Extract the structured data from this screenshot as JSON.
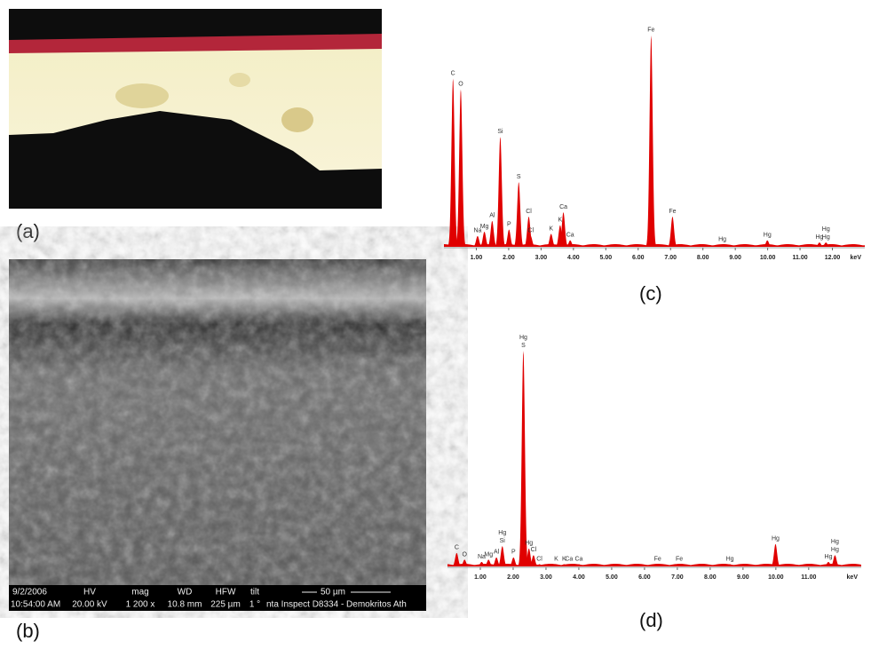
{
  "panels": {
    "a": "(a)",
    "b": "(b)",
    "c": "(c)",
    "d": "(d)"
  },
  "sem_info": {
    "date": "9/2/2006",
    "time": "10:54:00 AM",
    "hv_label": "HV",
    "hv": "20.00 kV",
    "mag_label": "mag",
    "mag": "1 200 x",
    "wd_label": "WD",
    "wd": "10.8 mm",
    "hfw_label": "HFW",
    "hfw": "225 µm",
    "tilt_label": "tilt",
    "tilt": "1 °",
    "scale": "50 µm",
    "instrument": "nta Inspect D8334 - Demokritos Ath"
  },
  "chart_data": [
    {
      "type": "spectrum",
      "color": "#e00000",
      "x_unit": "keV",
      "xlim": [
        0,
        13
      ],
      "ylim": [
        0,
        100
      ],
      "xticks": [
        {
          "value": 1,
          "label": "1.00"
        },
        {
          "value": 2,
          "label": "2.00"
        },
        {
          "value": 3,
          "label": "3.00"
        },
        {
          "value": 4,
          "label": "4.00"
        },
        {
          "value": 5,
          "label": "5.00"
        },
        {
          "value": 6,
          "label": "6.00"
        },
        {
          "value": 7,
          "label": "7.00"
        },
        {
          "value": 8,
          "label": "8.00"
        },
        {
          "value": 9,
          "label": "9.00"
        },
        {
          "value": 10,
          "label": "10.00"
        },
        {
          "value": 11,
          "label": "11.00"
        },
        {
          "value": 12,
          "label": "12.00"
        }
      ],
      "x": [
        0.28,
        0.52,
        1.04,
        1.25,
        1.49,
        1.74,
        2.01,
        2.31,
        2.62,
        2.68,
        3.31,
        3.59,
        3.69,
        3.9,
        6.4,
        7.06,
        8.6,
        9.99,
        11.6,
        11.8
      ],
      "values": [
        78,
        73,
        5,
        7,
        12,
        51,
        8,
        30,
        14,
        5,
        6,
        10,
        16,
        3,
        98,
        14,
        1,
        3,
        2,
        2
      ],
      "peak_labels": [
        [
          "C"
        ],
        [
          "O"
        ],
        [
          "Na"
        ],
        [
          "Mg"
        ],
        [
          "Al"
        ],
        [
          "Si"
        ],
        [
          "P"
        ],
        [
          "S"
        ],
        [
          "Cl"
        ],
        [
          "Cl"
        ],
        [
          "K"
        ],
        [
          "K"
        ],
        [
          "Ca"
        ],
        [
          "Ca"
        ],
        [
          "Fe"
        ],
        [
          "Fe"
        ],
        [
          "Hg"
        ],
        [
          "Hg"
        ],
        [
          "Hg"
        ],
        [
          "Hg",
          "Hg"
        ]
      ]
    },
    {
      "type": "spectrum",
      "color": "#e00000",
      "x_unit": "keV",
      "xlim": [
        0,
        12.6
      ],
      "ylim": [
        0,
        100
      ],
      "xticks": [
        {
          "value": 1,
          "label": "1.00"
        },
        {
          "value": 2,
          "label": "2.00"
        },
        {
          "value": 3,
          "label": "3.00"
        },
        {
          "value": 4,
          "label": "4.00"
        },
        {
          "value": 5,
          "label": "5.00"
        },
        {
          "value": 6,
          "label": "6.00"
        },
        {
          "value": 7,
          "label": "7.00"
        },
        {
          "value": 8,
          "label": "8.00"
        },
        {
          "value": 9,
          "label": "9.00"
        },
        {
          "value": 10,
          "label": "10.00"
        },
        {
          "value": 11,
          "label": "11.00"
        }
      ],
      "x": [
        0.28,
        0.52,
        1.04,
        1.25,
        1.49,
        1.67,
        2.01,
        2.31,
        2.48,
        2.62,
        2.8,
        3.31,
        3.55,
        3.7,
        4.0,
        6.4,
        7.06,
        8.6,
        9.99,
        11.6,
        11.8
      ],
      "values": [
        6,
        3,
        2,
        3,
        4,
        9,
        4,
        96,
        8,
        5,
        1,
        1,
        1,
        1,
        1,
        1,
        1,
        1,
        10,
        2,
        5
      ],
      "peak_labels": [
        [
          "C"
        ],
        [
          "O"
        ],
        [
          "Na"
        ],
        [
          "Mg"
        ],
        [
          "Al"
        ],
        [
          "Si",
          "Hg"
        ],
        [
          "P"
        ],
        [
          "S",
          "Hg"
        ],
        [
          "Hg"
        ],
        [
          "Cl"
        ],
        [
          "Cl"
        ],
        [
          "K"
        ],
        [
          "K"
        ],
        [
          "Ca"
        ],
        [
          "Ca"
        ],
        [
          "Fe"
        ],
        [
          "Fe"
        ],
        [
          "Hg"
        ],
        [
          "Hg"
        ],
        [
          "Hg"
        ],
        [
          "Hg",
          "Hg"
        ]
      ]
    }
  ]
}
